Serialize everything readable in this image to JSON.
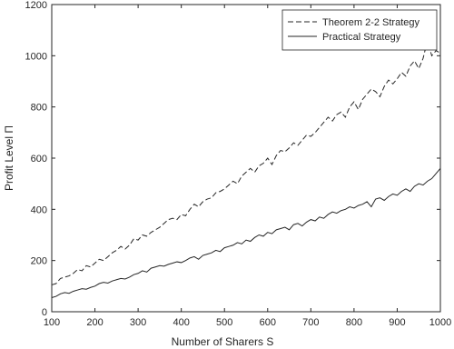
{
  "chart_data": {
    "type": "line",
    "xlabel": "Number of Sharers S",
    "ylabel": "Profit Level Π",
    "x": [
      100,
      110,
      120,
      130,
      140,
      150,
      160,
      170,
      180,
      190,
      200,
      210,
      220,
      230,
      240,
      250,
      260,
      270,
      280,
      290,
      300,
      310,
      320,
      330,
      340,
      350,
      360,
      370,
      380,
      390,
      400,
      410,
      420,
      430,
      440,
      450,
      460,
      470,
      480,
      490,
      500,
      510,
      520,
      530,
      540,
      550,
      560,
      570,
      580,
      590,
      600,
      610,
      620,
      630,
      640,
      650,
      660,
      670,
      680,
      690,
      700,
      710,
      720,
      730,
      740,
      750,
      760,
      770,
      780,
      790,
      800,
      810,
      820,
      830,
      840,
      850,
      860,
      870,
      880,
      890,
      900,
      910,
      920,
      930,
      940,
      950,
      960,
      970,
      980,
      990,
      1000
    ],
    "series": [
      {
        "name": "Theorem 2-2 Strategy",
        "color": "#262626",
        "dash": true,
        "values": [
          105,
          110,
          130,
          135,
          140,
          150,
          165,
          160,
          180,
          175,
          190,
          205,
          200,
          215,
          230,
          240,
          255,
          245,
          260,
          285,
          280,
          300,
          295,
          310,
          320,
          330,
          345,
          360,
          365,
          360,
          380,
          375,
          400,
          420,
          410,
          430,
          440,
          445,
          465,
          470,
          480,
          495,
          510,
          500,
          530,
          545,
          560,
          545,
          570,
          580,
          600,
          575,
          610,
          630,
          625,
          640,
          660,
          650,
          670,
          690,
          685,
          700,
          720,
          740,
          760,
          745,
          770,
          780,
          760,
          800,
          820,
          790,
          830,
          850,
          870,
          860,
          840,
          880,
          905,
          890,
          910,
          935,
          920,
          960,
          980,
          950,
          990,
          1060,
          1000,
          1020,
          1010
        ]
      },
      {
        "name": "Practical Strategy",
        "color": "#262626",
        "dash": false,
        "values": [
          55,
          60,
          70,
          75,
          72,
          80,
          85,
          90,
          88,
          95,
          100,
          110,
          115,
          112,
          120,
          125,
          130,
          128,
          135,
          145,
          150,
          160,
          155,
          170,
          175,
          180,
          178,
          185,
          190,
          195,
          192,
          200,
          210,
          215,
          205,
          220,
          225,
          230,
          240,
          235,
          250,
          255,
          260,
          270,
          265,
          280,
          275,
          290,
          300,
          295,
          310,
          305,
          320,
          325,
          330,
          320,
          340,
          345,
          335,
          350,
          360,
          355,
          370,
          365,
          380,
          390,
          385,
          395,
          400,
          410,
          405,
          415,
          420,
          430,
          410,
          440,
          445,
          435,
          450,
          460,
          455,
          470,
          480,
          470,
          490,
          500,
          495,
          510,
          520,
          540,
          560
        ]
      }
    ],
    "xlim": [
      100,
      1000
    ],
    "xticks": [
      100,
      200,
      300,
      400,
      500,
      600,
      700,
      800,
      900,
      1000
    ],
    "ylim": [
      0,
      1200
    ],
    "yticks": [
      0,
      200,
      400,
      600,
      800,
      1000,
      1200
    ],
    "legend": "northeast"
  }
}
